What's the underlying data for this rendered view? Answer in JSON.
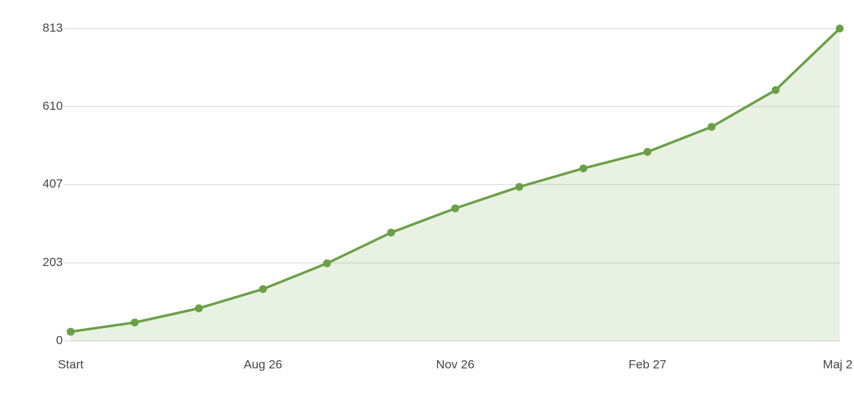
{
  "chart_data": {
    "type": "area",
    "categories": [
      "Start",
      null,
      null,
      "Aug 26",
      null,
      null,
      "Nov 26",
      null,
      null,
      "Feb 27",
      null,
      null,
      "Maj 2"
    ],
    "series": [
      {
        "color": "#6aa046",
        "values": [
          24,
          48,
          85,
          135,
          202,
          282,
          345,
          401,
          449,
          492,
          557,
          653,
          813
        ]
      }
    ],
    "ylim": [
      0,
      813
    ],
    "yticks": [
      0,
      203,
      407,
      610,
      813
    ],
    "grid": true
  }
}
